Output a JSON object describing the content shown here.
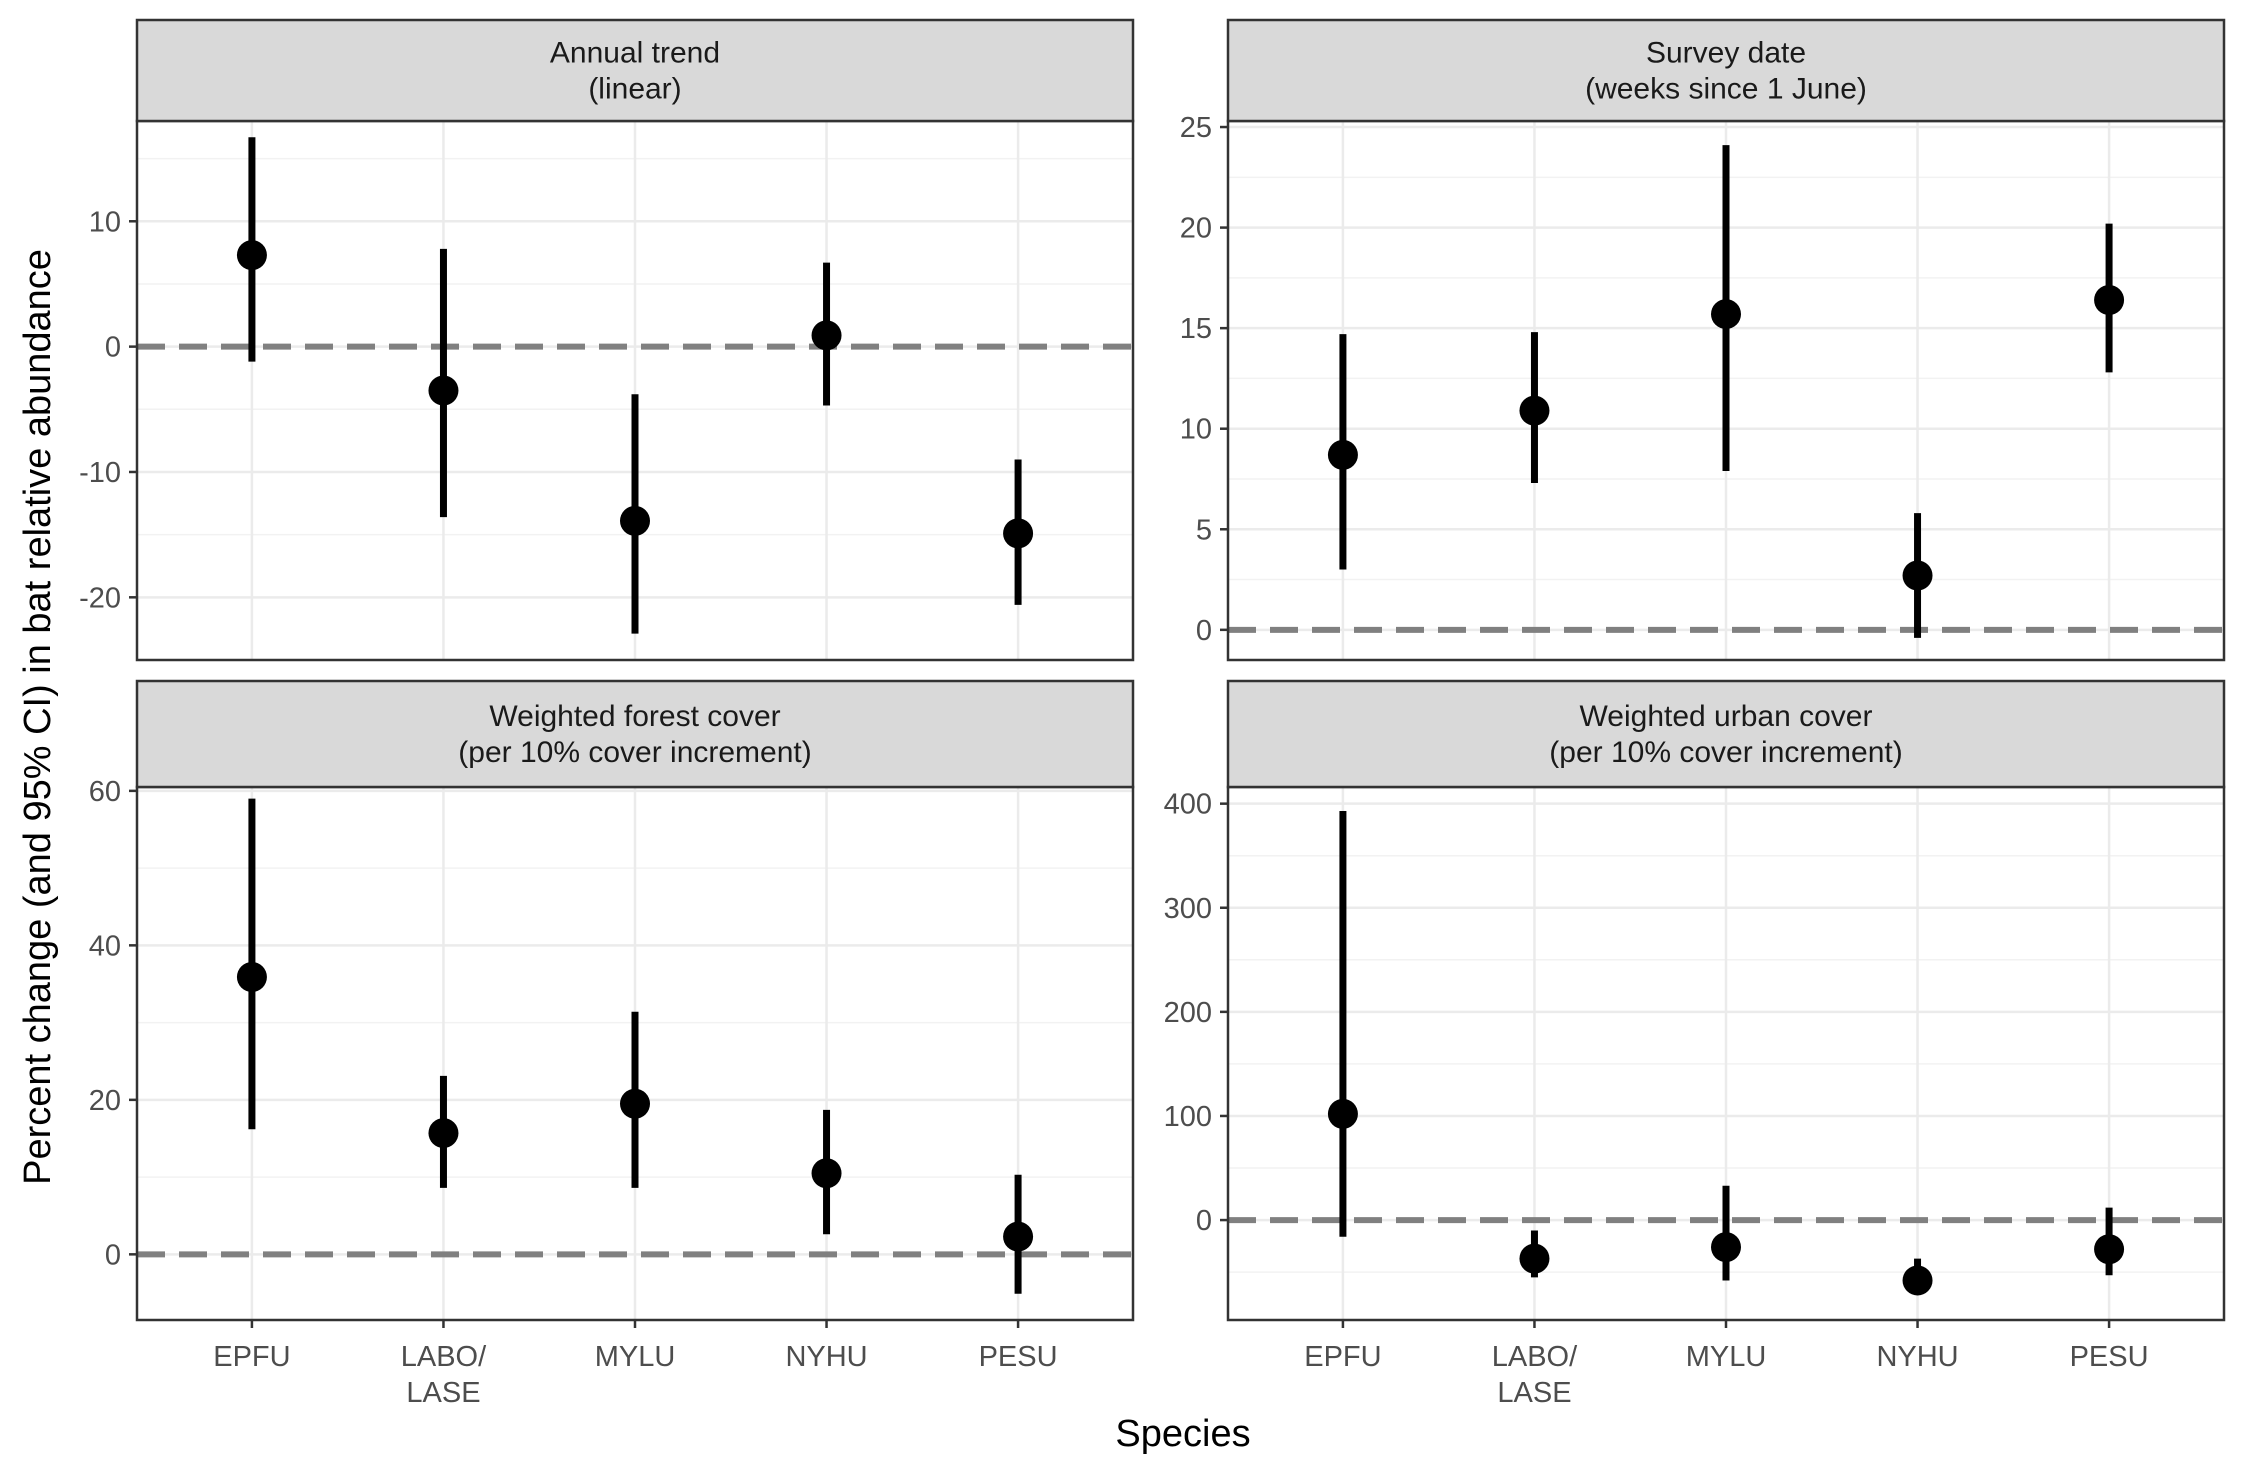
{
  "chart_data": {
    "type": "pointrange",
    "xlabel": "Species",
    "ylabel": "Percent change (and 95% CI) in bat relative abundance",
    "categories": [
      [
        "EPFU"
      ],
      [
        "LABO/",
        "LASE"
      ],
      [
        "MYLU"
      ],
      [
        "NYHU"
      ],
      [
        "PESU"
      ]
    ],
    "reference_line": 0,
    "panels": [
      {
        "title": [
          "Annual trend",
          "(linear)"
        ],
        "ylim": [
          -25,
          18
        ],
        "yticks": [
          -20,
          -10,
          0,
          10
        ],
        "estimates": [
          7.3,
          -3.5,
          -13.9,
          0.9,
          -14.9
        ],
        "lower": [
          -1.2,
          -13.6,
          -22.9,
          -4.7,
          -20.6
        ],
        "upper": [
          16.7,
          7.8,
          -3.8,
          6.7,
          -9.0
        ]
      },
      {
        "title": [
          "Survey date",
          "(weeks since 1 June)"
        ],
        "ylim": [
          -1.5,
          25.3
        ],
        "yticks": [
          0,
          5,
          10,
          15,
          20,
          25
        ],
        "estimates": [
          8.7,
          10.9,
          15.7,
          2.7,
          16.4
        ],
        "lower": [
          3.0,
          7.3,
          7.9,
          -0.4,
          12.8
        ],
        "upper": [
          14.7,
          14.8,
          24.1,
          5.8,
          20.2
        ]
      },
      {
        "title": [
          "Weighted forest cover",
          "(per 10% cover increment)"
        ],
        "ylim": [
          -8.5,
          60.5
        ],
        "yticks": [
          0,
          20,
          40,
          60
        ],
        "estimates": [
          35.9,
          15.7,
          19.5,
          10.5,
          2.3
        ],
        "lower": [
          16.2,
          8.6,
          8.6,
          2.6,
          -5.1
        ],
        "upper": [
          59.0,
          23.1,
          31.4,
          18.7,
          10.3
        ]
      },
      {
        "title": [
          "Weighted urban cover",
          "(per 10% cover increment)"
        ],
        "ylim": [
          -96,
          416
        ],
        "yticks": [
          0,
          100,
          200,
          300,
          400
        ],
        "estimates": [
          102,
          -37,
          -26,
          -58,
          -28
        ],
        "lower": [
          -16,
          -55,
          -58,
          -70,
          -53
        ],
        "upper": [
          393,
          -10,
          33,
          -37,
          12
        ]
      }
    ]
  }
}
